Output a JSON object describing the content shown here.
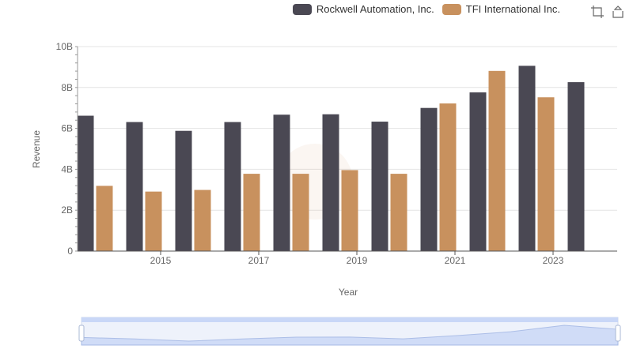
{
  "legend": [
    {
      "name": "Rockwell Automation, Inc.",
      "color": "#4a4853"
    },
    {
      "name": "TFI International Inc.",
      "color": "#c8915e"
    }
  ],
  "toolbox": {
    "icons": [
      "zoom-icon",
      "restore-icon"
    ]
  },
  "chart_data": {
    "type": "bar",
    "title": "",
    "xlabel": "Year",
    "ylabel": "Revenue",
    "categories": [
      "2014",
      "2015",
      "2016",
      "2017",
      "2018",
      "2019",
      "2020",
      "2021",
      "2022",
      "2023",
      "2024"
    ],
    "x_tick_labels": [
      "2015",
      "2017",
      "2019",
      "2021",
      "2023"
    ],
    "y_ticks": [
      {
        "value": 0,
        "label": "0"
      },
      {
        "value": 2000000000,
        "label": "2B"
      },
      {
        "value": 4000000000,
        "label": "4B"
      },
      {
        "value": 6000000000,
        "label": "6B"
      },
      {
        "value": 8000000000,
        "label": "8B"
      },
      {
        "value": 10000000000,
        "label": "10B"
      }
    ],
    "ylim": [
      0,
      10000000000
    ],
    "grid": true,
    "legend_position": "top-right",
    "series": [
      {
        "name": "Rockwell Automation, Inc.",
        "color": "#4a4853",
        "values": [
          6620000000,
          6310000000,
          5880000000,
          6310000000,
          6670000000,
          6690000000,
          6330000000,
          7000000000,
          7760000000,
          9060000000,
          8260000000
        ]
      },
      {
        "name": "TFI International Inc.",
        "color": "#c8915e",
        "values": [
          3190000000,
          2910000000,
          2990000000,
          3780000000,
          3780000000,
          3960000000,
          3780000000,
          7220000000,
          8810000000,
          7520000000,
          null
        ]
      }
    ],
    "data_zoom": {
      "start": 0,
      "end": 100
    }
  }
}
